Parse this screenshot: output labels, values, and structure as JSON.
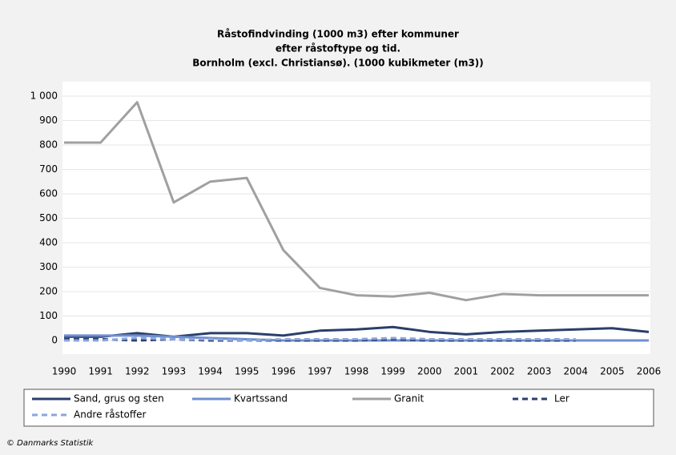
{
  "chart_data": {
    "type": "line",
    "title": [
      "Råstofindvinding (1000 m3) efter kommuner",
      "efter råstoftype og tid.",
      "Bornholm (excl. Christiansø). (1000 kubikmeter (m3))"
    ],
    "categories": [
      "1990",
      "1991",
      "1992",
      "1993",
      "1994",
      "1995",
      "1996",
      "1997",
      "1998",
      "1999",
      "2000",
      "2001",
      "2002",
      "2003",
      "2004",
      "2005",
      "2006"
    ],
    "series": [
      {
        "name": "Sand, grus og sten",
        "color": "#2b3f6b",
        "dashed": false,
        "values": [
          15,
          15,
          30,
          15,
          30,
          30,
          20,
          40,
          45,
          55,
          35,
          25,
          35,
          40,
          45,
          50,
          35
        ]
      },
      {
        "name": "Kvartssand",
        "color": "#6f8fd0",
        "dashed": false,
        "values": [
          20,
          20,
          20,
          15,
          10,
          5,
          0,
          0,
          0,
          0,
          0,
          0,
          0,
          0,
          0,
          0,
          0
        ]
      },
      {
        "name": "Granit",
        "color": "#a0a0a0",
        "dashed": false,
        "values": [
          810,
          810,
          975,
          565,
          650,
          665,
          370,
          215,
          185,
          180,
          195,
          165,
          190,
          185,
          185,
          185,
          185
        ]
      },
      {
        "name": "Ler",
        "color": "#2b3f6b",
        "dashed": true,
        "values": [
          5,
          5,
          0,
          5,
          0,
          0,
          0,
          0,
          0,
          5,
          0,
          0,
          0,
          0,
          0,
          null,
          null
        ]
      },
      {
        "name": "Andre råstoffer",
        "color": "#8aa5e0",
        "dashed": true,
        "values": [
          0,
          0,
          10,
          5,
          5,
          0,
          5,
          5,
          5,
          10,
          5,
          5,
          5,
          5,
          5,
          null,
          null
        ]
      }
    ],
    "ylim": [
      0,
      1000
    ],
    "yticks": [
      0,
      100,
      200,
      300,
      400,
      500,
      600,
      700,
      800,
      900,
      {
        "value": 1000,
        "label": "1 000"
      }
    ],
    "grid": true,
    "footer": "© Danmarks Statistik"
  }
}
